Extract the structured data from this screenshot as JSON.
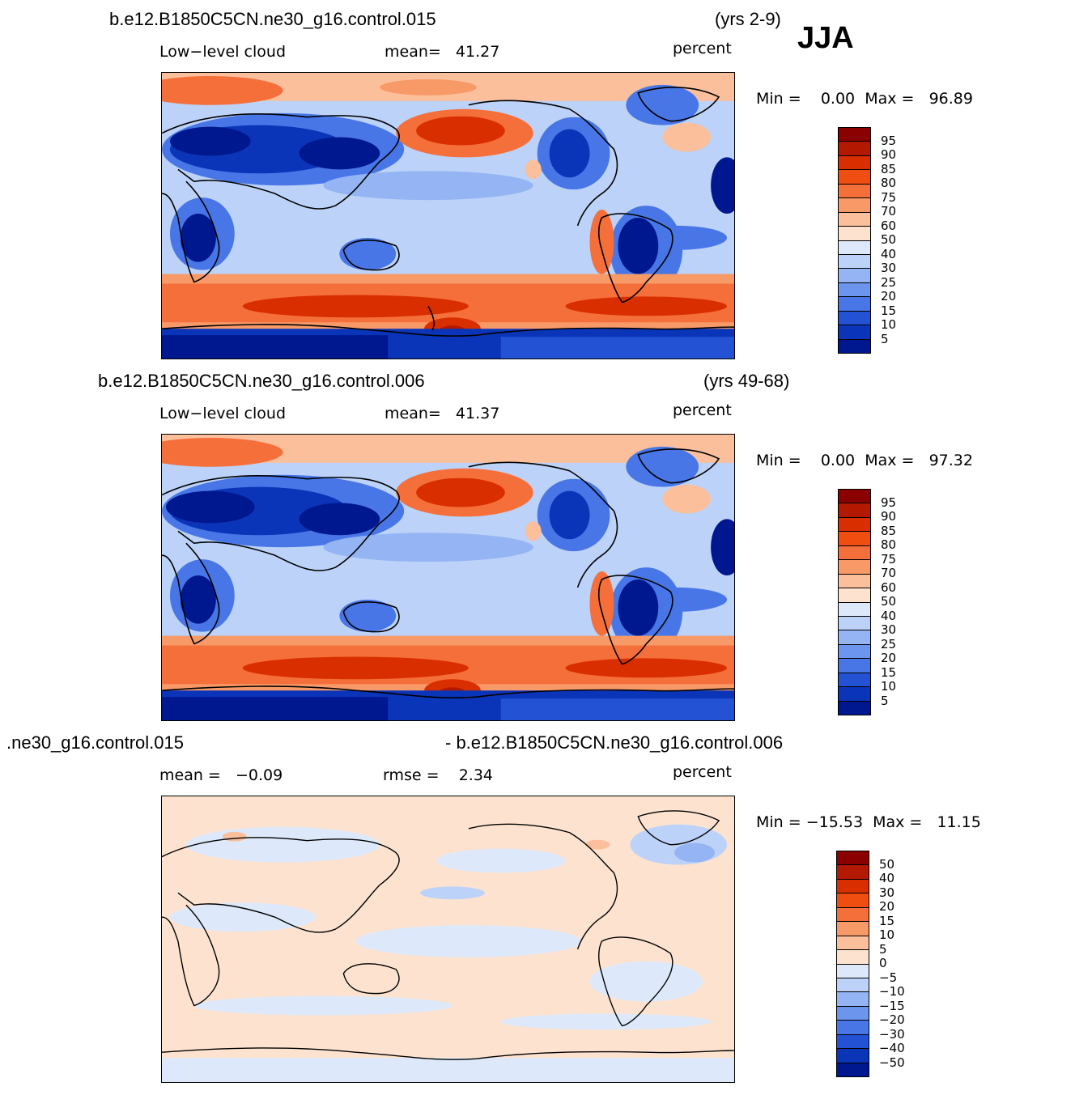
{
  "season": "JJA",
  "panels": [
    {
      "case": "b.e12.B1850C5CN.ne30_g16.control.015",
      "years": "(yrs 2-9)",
      "variable": "Low−level cloud",
      "stat_text": "mean=   41.27",
      "units": "percent",
      "minmax": "Min =    0.00  Max =   96.89"
    },
    {
      "case": "b.e12.B1850C5CN.ne30_g16.control.006",
      "years": "(yrs 49-68)",
      "variable": "Low−level cloud",
      "stat_text": "mean=   41.37",
      "units": "percent",
      "minmax": "Min =    0.00  Max =   97.32"
    },
    {
      "case": ".ne30_g16.control.015",
      "case2": "- b.e12.B1850C5CN.ne30_g16.control.006",
      "variable": "mean =   −0.09",
      "stat_text": "rmse =    2.34",
      "units": "percent",
      "minmax": "Min = −15.53  Max =   11.15"
    }
  ],
  "colorbar_abs": {
    "labels": [
      "95",
      "90",
      "85",
      "80",
      "75",
      "70",
      "60",
      "50",
      "40",
      "30",
      "25",
      "20",
      "15",
      "10",
      "5"
    ],
    "colors": [
      "#8b0000",
      "#b31800",
      "#d92f00",
      "#f04d10",
      "#f56f3a",
      "#f89968",
      "#fbbf9c",
      "#fde3cf",
      "#dde9fb",
      "#bcd2f8",
      "#94b4f3",
      "#6c95ee",
      "#4876e7",
      "#2452d4",
      "#0b35b8",
      "#00188f"
    ]
  },
  "colorbar_diff": {
    "labels": [
      "50",
      "40",
      "30",
      "20",
      "15",
      "10",
      "5",
      "0",
      "−5",
      "−10",
      "−15",
      "−20",
      "−30",
      "−40",
      "−50"
    ],
    "colors": [
      "#8b0000",
      "#b31800",
      "#d92f00",
      "#f04d10",
      "#f56f3a",
      "#f89968",
      "#fbbf9c",
      "#fde3cf",
      "#dde9fb",
      "#bcd2f8",
      "#94b4f3",
      "#6c95ee",
      "#4876e7",
      "#2452d4",
      "#0b35b8",
      "#00188f"
    ]
  }
}
